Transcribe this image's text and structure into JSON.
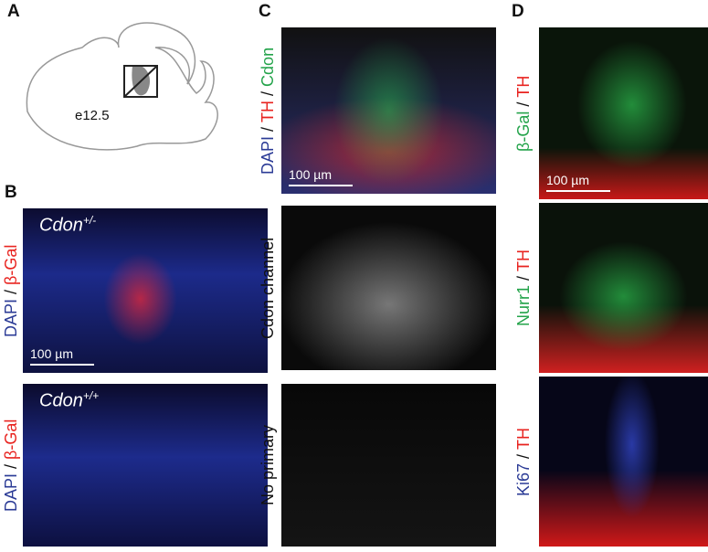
{
  "panels": {
    "a": {
      "letter": "A",
      "stage": "e12.5"
    },
    "b": {
      "letter": "B",
      "images": [
        {
          "genotype": "Cdon",
          "superscript": "+/-",
          "stain": [
            {
              "text": "DAPI",
              "color": "#2b3b96"
            },
            {
              "text": " / ",
              "color": "#111111"
            },
            {
              "text": "β-Gal",
              "color": "#e8231f"
            }
          ],
          "scale_bar": "100 µm"
        },
        {
          "genotype": "Cdon",
          "superscript": "+/+",
          "stain": [
            {
              "text": "DAPI",
              "color": "#2b3b96"
            },
            {
              "text": " / ",
              "color": "#111111"
            },
            {
              "text": "β-Gal",
              "color": "#e8231f"
            }
          ]
        }
      ]
    },
    "c": {
      "letter": "C",
      "images": [
        {
          "stain": [
            {
              "text": "DAPI",
              "color": "#2b3b96"
            },
            {
              "text": " / ",
              "color": "#111111"
            },
            {
              "text": "TH",
              "color": "#e8231f"
            },
            {
              "text": " / ",
              "color": "#111111"
            },
            {
              "text": "Cdon",
              "color": "#23a34a"
            }
          ],
          "scale_bar": "100 µm"
        },
        {
          "stain": [
            {
              "text": "Cdon channel",
              "color": "#111111"
            }
          ]
        },
        {
          "stain": [
            {
              "text": "No primary",
              "color": "#111111"
            }
          ]
        }
      ]
    },
    "d": {
      "letter": "D",
      "images": [
        {
          "stain": [
            {
              "text": "β-Gal",
              "color": "#23a34a"
            },
            {
              "text": " / ",
              "color": "#111111"
            },
            {
              "text": "TH",
              "color": "#e8231f"
            }
          ],
          "scale_bar": "100 µm"
        },
        {
          "stain": [
            {
              "text": "Nurr1",
              "color": "#23a34a"
            },
            {
              "text": " / ",
              "color": "#111111"
            },
            {
              "text": "TH",
              "color": "#e8231f"
            }
          ]
        },
        {
          "stain": [
            {
              "text": "Ki67",
              "color": "#2b3b96"
            },
            {
              "text": " / ",
              "color": "#111111"
            },
            {
              "text": "TH",
              "color": "#e8231f"
            }
          ]
        }
      ]
    }
  }
}
